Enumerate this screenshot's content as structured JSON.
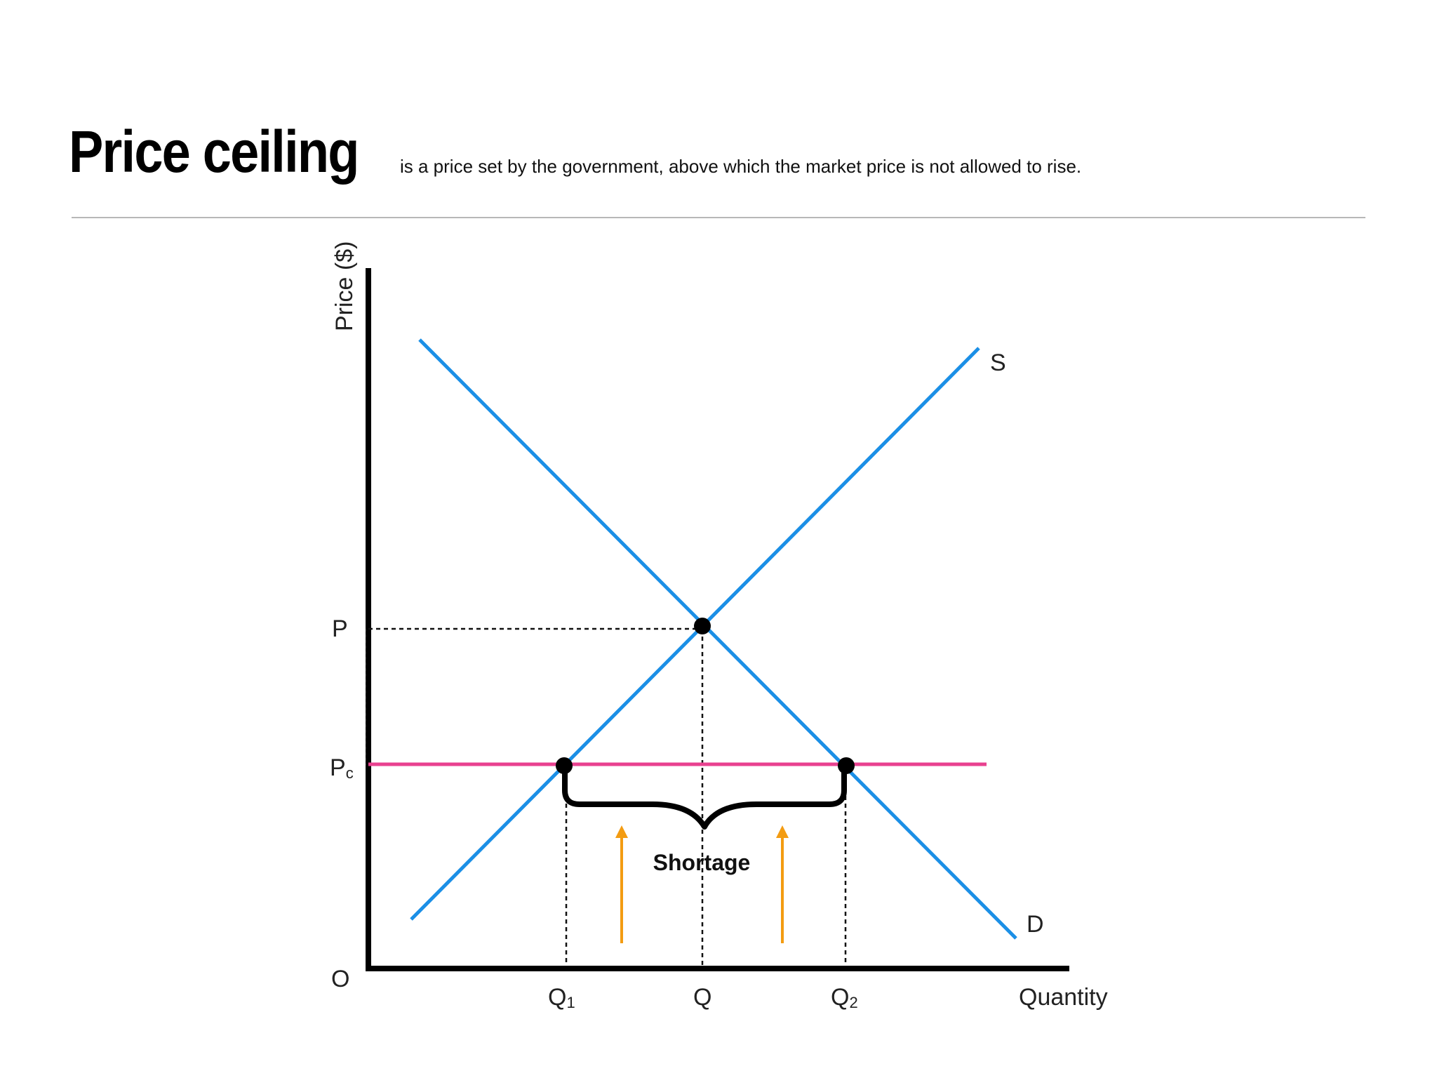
{
  "header": {
    "title": "Price ceiling",
    "subtitle": "is a price set by the government, above which the market price is not allowed to rise."
  },
  "diagram": {
    "y_axis_label": "Price ($)",
    "x_axis_label": "Quantity",
    "origin_label": "O",
    "price_labels": {
      "equilibrium": "P",
      "ceiling_main": "P",
      "ceiling_sub": "c"
    },
    "quantity_labels": {
      "q1_main": "Q",
      "q1_sub": "1",
      "q": "Q",
      "q2_main": "Q",
      "q2_sub": "2"
    },
    "supply_label": "S",
    "demand_label": "D",
    "shortage_label": "Shortage",
    "colors": {
      "supply_demand": "#1b8fe6",
      "ceiling": "#e8418f",
      "arrows": "#f39c12",
      "axes": "#000000",
      "rule": "#b7b7b7"
    }
  }
}
